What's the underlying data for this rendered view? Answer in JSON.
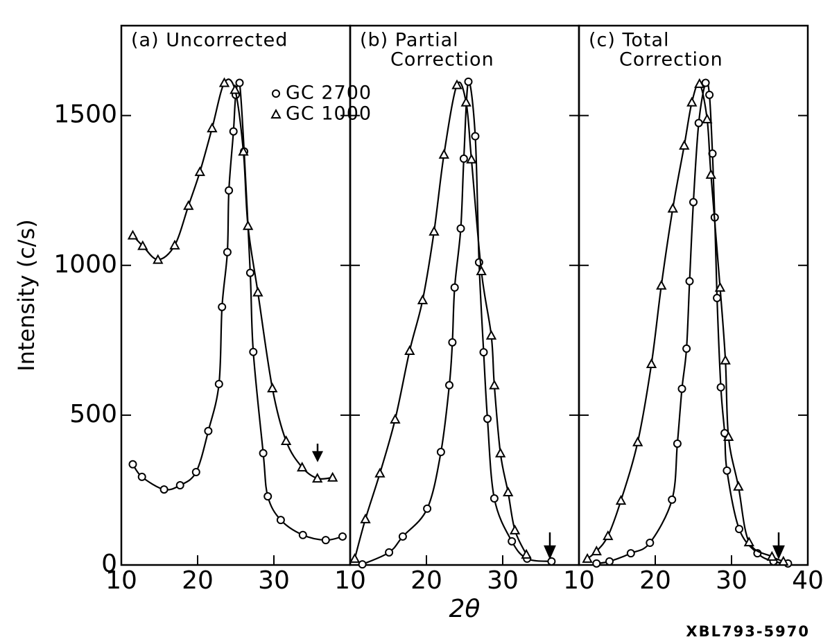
{
  "chart_data": [
    {
      "type": "line",
      "title": [
        "(a) Uncorrected"
      ],
      "ylabel": "Intensity (c/s)",
      "xlim": [
        10,
        40
      ],
      "xticks": [
        10,
        20,
        30
      ],
      "ylim": [
        0,
        1800
      ],
      "yticks": [
        0,
        500,
        1000,
        1500
      ],
      "series": [
        {
          "name": "GC 2700",
          "marker": "circle",
          "color": "#000000",
          "x": [
            11.5,
            12.7,
            15.6,
            17.7,
            19.8,
            21.4,
            22.8,
            23.2,
            23.9,
            24.1,
            24.7,
            25.0,
            25.5,
            26.1,
            26.9,
            27.3,
            28.6,
            29.2,
            30.9,
            33.8,
            36.8,
            39.0
          ],
          "values": [
            336,
            294,
            252,
            266,
            310,
            447,
            604,
            861,
            1044,
            1250,
            1447,
            1569,
            1609,
            1380,
            975,
            711,
            373,
            229,
            150,
            100,
            83,
            95
          ]
        },
        {
          "name": "GC 1000",
          "marker": "triangle",
          "color": "#000000",
          "x": [
            11.5,
            12.8,
            14.8,
            17.0,
            18.8,
            20.3,
            21.9,
            23.5,
            24.9,
            26.0,
            26.6,
            27.9,
            29.8,
            31.6,
            33.7,
            35.7,
            37.7
          ],
          "values": [
            1100,
            1065,
            1019,
            1067,
            1199,
            1312,
            1458,
            1609,
            1586,
            1380,
            1132,
            910,
            590,
            414,
            326,
            289,
            292
          ]
        }
      ]
    },
    {
      "type": "line",
      "title": [
        "(b) Partial",
        "Correction"
      ],
      "xlabel": "2θ",
      "xlim": [
        10,
        40
      ],
      "xticks": [
        10,
        20,
        30
      ],
      "ylim": [
        0,
        1800
      ],
      "series": [
        {
          "marker": "circle",
          "color": "#000000",
          "x": [
            11.6,
            15.1,
            16.9,
            20.1,
            21.9,
            23.0,
            23.4,
            23.7,
            24.5,
            24.9,
            25.5,
            26.4,
            26.9,
            27.5,
            28.0,
            28.9,
            31.2,
            33.2,
            36.4
          ],
          "values": [
            2,
            42,
            95,
            188,
            377,
            600,
            743,
            926,
            1123,
            1356,
            1613,
            1431,
            1010,
            710,
            488,
            222,
            79,
            21,
            12
          ]
        },
        {
          "marker": "triangle",
          "color": "#000000",
          "x": [
            10.6,
            12.0,
            13.9,
            15.9,
            17.8,
            19.5,
            21.0,
            22.3,
            24.0,
            25.2,
            25.9,
            27.2,
            28.5,
            28.9,
            29.7,
            30.7,
            31.6,
            33.1
          ],
          "values": [
            21,
            153,
            306,
            486,
            715,
            884,
            1113,
            1370,
            1602,
            1544,
            1354,
            981,
            766,
            600,
            373,
            243,
            116,
            35
          ]
        }
      ]
    },
    {
      "type": "line",
      "title": [
        "(c) Total",
        "Correction"
      ],
      "xlim": [
        10,
        40
      ],
      "xticks": [
        10,
        20,
        30,
        40
      ],
      "ylim": [
        0,
        1800
      ],
      "series": [
        {
          "marker": "circle",
          "color": "#000000",
          "x": [
            12.3,
            14.0,
            16.8,
            19.3,
            22.2,
            22.9,
            23.5,
            24.1,
            24.5,
            25.0,
            25.7,
            26.6,
            27.1,
            27.5,
            27.8,
            28.1,
            28.6,
            29.1,
            29.4,
            31.0,
            33.4,
            35.5,
            37.4
          ],
          "values": [
            5,
            12,
            39,
            74,
            218,
            405,
            588,
            722,
            947,
            1211,
            1475,
            1609,
            1569,
            1373,
            1160,
            891,
            593,
            440,
            315,
            120,
            39,
            12,
            5
          ]
        },
        {
          "marker": "triangle",
          "color": "#000000",
          "x": [
            11.1,
            12.3,
            13.8,
            15.5,
            17.7,
            19.5,
            20.8,
            22.3,
            23.8,
            24.8,
            25.8,
            26.8,
            27.3,
            28.5,
            29.2,
            29.6,
            30.9,
            32.3,
            35.3,
            36.8
          ],
          "values": [
            21,
            46,
            97,
            215,
            410,
            671,
            933,
            1190,
            1400,
            1544,
            1606,
            1488,
            1303,
            926,
            683,
            428,
            262,
            76,
            28,
            12
          ]
        }
      ]
    }
  ],
  "footer": "XBL793-5970"
}
